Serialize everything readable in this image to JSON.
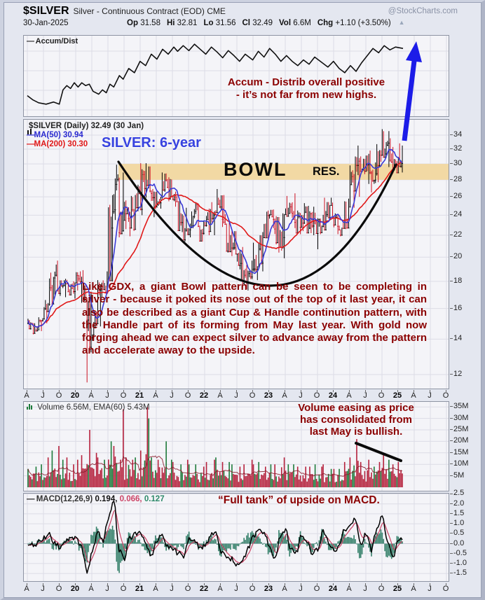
{
  "header": {
    "symbol": "$SILVER",
    "description": "Silver - Continuous Contract (EOD) CME",
    "credit": "@StockCharts.com",
    "date": "30-Jan-2025",
    "ohlc": [
      {
        "label": "Op",
        "value": "31.58"
      },
      {
        "label": "Hi",
        "value": "32.81"
      },
      {
        "label": "Lo",
        "value": "31.56"
      },
      {
        "label": "Cl",
        "value": "32.49"
      },
      {
        "label": "Vol",
        "value": "6.6M"
      },
      {
        "label": "Chg",
        "value": "+1.10 (+3.50%)"
      }
    ],
    "change_arrow": "▲"
  },
  "panels": {
    "accum": {
      "legend_dash": "—",
      "legend": "Accum/Dist",
      "annotation_lines": [
        "Accum - Distrib overall positive",
        "- it’s not far from new highs."
      ]
    },
    "main": {
      "legend_title": "$SILVER (Daily) 32.49 (30 Jan)",
      "legend_ma50": "MA(50) 30.94",
      "legend_ma200": "MA(200) 30.30",
      "period_label": "SILVER: 6-year",
      "bowl_label": "BOWL",
      "res_label": "RES.",
      "paragraph": "Like GDX, a giant Bowl pattern can be seen to be completing in silver - because it poked its nose out of the top of it last year, it can also be described as a giant Cup & Handle continution pattern, with the Handle part of its forming from May last year. With gold now forging ahead we can expect silver to advance away from the pattern and accelerate away to the upside.",
      "y_ticks": [
        34,
        32,
        30,
        28,
        26,
        24,
        22,
        20,
        18,
        16,
        14,
        12
      ]
    },
    "volume": {
      "legend": "Volume 6.56M, EMA(60) 5.43M",
      "annotation_lines": [
        "Volume easing as price",
        "has consolidated from",
        "last May is bullish."
      ],
      "y_ticks": [
        "35M",
        "30M",
        "25M",
        "20M",
        "15M",
        "10M",
        "5M"
      ]
    },
    "macd": {
      "legend_dash": "—",
      "legend_prefix": "MACD(12,26,9)",
      "val_macd": "0.194,",
      "val_signal": "0.066,",
      "val_hist": "0.127",
      "annotation": "“Full tank” of upside on MACD.",
      "y_ticks": [
        "2.5",
        "2.0",
        "1.5",
        "1.0",
        "0.5",
        "0.0",
        "-0.5",
        "-1.0",
        "-1.5"
      ]
    }
  },
  "xaxis_labels": [
    "A",
    "J",
    "O",
    "20",
    "A",
    "J",
    "O",
    "21",
    "A",
    "J",
    "O",
    "22",
    "A",
    "J",
    "O",
    "23",
    "A",
    "J",
    "O",
    "24",
    "A",
    "J",
    "O",
    "25",
    "A",
    "J",
    "O"
  ],
  "colors": {
    "candle_up": "#000000",
    "candle_down": "#cc1122",
    "ma50": "#3a3ad6",
    "ma200": "#e01818",
    "resistance_band": "#f2d9a4",
    "annotation": "#8b0000",
    "arrow_blue": "#1c1ce8",
    "volume_red": "#b5213c",
    "volume_green": "#1d7a3a",
    "macd_line": "#000000",
    "macd_signal": "#cc4466",
    "macd_hist": "#35806a",
    "grid": "#dcdce6"
  },
  "chart_data": [
    {
      "type": "line",
      "title": "Accum/Dist",
      "y_normalized": true,
      "points": [
        [
          0.0,
          0.78
        ],
        [
          0.015,
          0.84
        ],
        [
          0.03,
          0.88
        ],
        [
          0.05,
          0.9
        ],
        [
          0.07,
          0.87
        ],
        [
          0.085,
          0.9
        ],
        [
          0.095,
          0.7
        ],
        [
          0.105,
          0.64
        ],
        [
          0.115,
          0.68
        ],
        [
          0.125,
          0.6
        ],
        [
          0.135,
          0.66
        ],
        [
          0.145,
          0.6
        ],
        [
          0.155,
          0.64
        ],
        [
          0.165,
          0.62
        ],
        [
          0.175,
          0.72
        ],
        [
          0.19,
          0.76
        ],
        [
          0.2,
          0.7
        ],
        [
          0.21,
          0.74
        ],
        [
          0.22,
          0.62
        ],
        [
          0.23,
          0.66
        ],
        [
          0.245,
          0.5
        ],
        [
          0.255,
          0.55
        ],
        [
          0.27,
          0.4
        ],
        [
          0.285,
          0.46
        ],
        [
          0.3,
          0.3
        ],
        [
          0.315,
          0.36
        ],
        [
          0.33,
          0.2
        ],
        [
          0.345,
          0.27
        ],
        [
          0.36,
          0.13
        ],
        [
          0.375,
          0.2
        ],
        [
          0.39,
          0.1
        ],
        [
          0.4,
          0.16
        ],
        [
          0.415,
          0.08
        ],
        [
          0.43,
          0.15
        ],
        [
          0.445,
          0.06
        ],
        [
          0.46,
          0.13
        ],
        [
          0.475,
          0.2
        ],
        [
          0.49,
          0.1
        ],
        [
          0.505,
          0.17
        ],
        [
          0.52,
          0.25
        ],
        [
          0.535,
          0.15
        ],
        [
          0.55,
          0.22
        ],
        [
          0.565,
          0.3
        ],
        [
          0.58,
          0.2
        ],
        [
          0.6,
          0.28
        ],
        [
          0.615,
          0.16
        ],
        [
          0.63,
          0.24
        ],
        [
          0.645,
          0.12
        ],
        [
          0.66,
          0.2
        ],
        [
          0.675,
          0.3
        ],
        [
          0.69,
          0.22
        ],
        [
          0.705,
          0.3
        ],
        [
          0.72,
          0.36
        ],
        [
          0.735,
          0.28
        ],
        [
          0.75,
          0.34
        ],
        [
          0.765,
          0.24
        ],
        [
          0.78,
          0.3
        ],
        [
          0.8,
          0.38
        ],
        [
          0.815,
          0.3
        ],
        [
          0.83,
          0.4
        ],
        [
          0.845,
          0.46
        ],
        [
          0.86,
          0.36
        ],
        [
          0.875,
          0.44
        ],
        [
          0.89,
          0.32
        ],
        [
          0.905,
          0.22
        ],
        [
          0.92,
          0.12
        ],
        [
          0.935,
          0.18
        ],
        [
          0.95,
          0.08
        ],
        [
          0.965,
          0.14
        ],
        [
          0.98,
          0.1
        ],
        [
          1.0,
          0.12
        ]
      ]
    },
    {
      "type": "candlestick",
      "title": "$SILVER Daily",
      "x_start": "Apr 2019",
      "x_end": "Jan 2025",
      "scale": "log",
      "ylim": [
        11,
        35
      ],
      "last_close": 32.49,
      "ma50_last": 30.94,
      "ma200_last": 30.3,
      "resistance_zone": [
        28,
        30
      ],
      "bowl": {
        "start_month": "2020-09",
        "start_price": 30,
        "bottom_month": "2022-12",
        "bottom_price": 17.7,
        "end_month": "2024-12",
        "end_price": 29.9
      },
      "monthly_hlc": [
        [
          15.3,
          14.6,
          15.0
        ],
        [
          15.0,
          14.3,
          14.6
        ],
        [
          15.4,
          14.5,
          15.3
        ],
        [
          16.6,
          15.0,
          16.3
        ],
        [
          18.7,
          16.2,
          18.3
        ],
        [
          19.7,
          17.0,
          17.1
        ],
        [
          18.1,
          16.9,
          18.0
        ],
        [
          18.2,
          16.8,
          17.0
        ],
        [
          18.0,
          16.7,
          17.9
        ],
        [
          18.8,
          17.3,
          18.0
        ],
        [
          18.9,
          16.4,
          16.7
        ],
        [
          17.2,
          11.6,
          14.1
        ],
        [
          15.8,
          13.9,
          15.0
        ],
        [
          18.1,
          14.8,
          17.9
        ],
        [
          18.8,
          17.2,
          18.2
        ],
        [
          26.2,
          18.0,
          24.4
        ],
        [
          29.9,
          23.5,
          28.2
        ],
        [
          28.9,
          21.8,
          23.5
        ],
        [
          25.6,
          22.6,
          23.7
        ],
        [
          26.1,
          21.9,
          22.6
        ],
        [
          27.4,
          22.6,
          26.4
        ],
        [
          30.1,
          24.0,
          27.0
        ],
        [
          30.1,
          25.9,
          26.7
        ],
        [
          26.9,
          23.8,
          24.9
        ],
        [
          26.6,
          24.7,
          26.0
        ],
        [
          28.9,
          25.8,
          28.0
        ],
        [
          28.3,
          25.5,
          26.1
        ],
        [
          26.6,
          24.9,
          25.5
        ],
        [
          25.6,
          22.3,
          23.9
        ],
        [
          24.8,
          21.4,
          22.1
        ],
        [
          24.4,
          21.8,
          23.9
        ],
        [
          25.4,
          22.8,
          22.9
        ],
        [
          23.4,
          21.4,
          23.3
        ],
        [
          24.7,
          22.0,
          22.4
        ],
        [
          25.4,
          22.0,
          24.4
        ],
        [
          26.9,
          24.2,
          24.9
        ],
        [
          26.2,
          22.8,
          23.1
        ],
        [
          23.3,
          20.4,
          21.5
        ],
        [
          22.5,
          20.1,
          20.3
        ],
        [
          20.6,
          18.0,
          20.2
        ],
        [
          20.9,
          17.4,
          17.9
        ],
        [
          19.7,
          17.3,
          19.0
        ],
        [
          21.3,
          18.1,
          19.2
        ],
        [
          22.3,
          18.8,
          21.8
        ],
        [
          24.5,
          21.7,
          24.0
        ],
        [
          24.6,
          22.7,
          23.6
        ],
        [
          23.9,
          20.4,
          20.9
        ],
        [
          24.2,
          19.9,
          24.1
        ],
        [
          26.1,
          23.9,
          25.1
        ],
        [
          26.4,
          22.7,
          23.3
        ],
        [
          24.5,
          22.1,
          22.8
        ],
        [
          25.3,
          22.4,
          24.9
        ],
        [
          25.0,
          22.2,
          24.2
        ],
        [
          24.9,
          22.0,
          22.2
        ],
        [
          23.7,
          20.7,
          22.9
        ],
        [
          25.9,
          22.5,
          25.3
        ],
        [
          25.9,
          23.6,
          23.8
        ],
        [
          24.2,
          22.1,
          22.9
        ],
        [
          23.4,
          21.9,
          22.7
        ],
        [
          25.8,
          22.6,
          24.9
        ],
        [
          29.8,
          24.8,
          26.7
        ],
        [
          32.5,
          26.0,
          30.4
        ],
        [
          31.0,
          28.7,
          29.1
        ],
        [
          31.8,
          27.5,
          28.9
        ],
        [
          30.2,
          26.5,
          28.8
        ],
        [
          32.7,
          27.7,
          31.2
        ],
        [
          34.9,
          30.8,
          32.6
        ],
        [
          34.6,
          29.6,
          30.3
        ],
        [
          32.3,
          28.8,
          28.9
        ],
        [
          32.8,
          28.9,
          32.49
        ]
      ]
    },
    {
      "type": "bar",
      "title": "Volume",
      "ema60_label": "5.43M",
      "ylim": [
        0,
        35
      ],
      "unit": "M shares",
      "monthly_avg_peak": [
        [
          4,
          8
        ],
        [
          4,
          9
        ],
        [
          4.5,
          10
        ],
        [
          5,
          13
        ],
        [
          6,
          16
        ],
        [
          6,
          18
        ],
        [
          5,
          12
        ],
        [
          5,
          13
        ],
        [
          4.5,
          10
        ],
        [
          5,
          12
        ],
        [
          6,
          14
        ],
        [
          9,
          25
        ],
        [
          7,
          15
        ],
        [
          6,
          13
        ],
        [
          6,
          12
        ],
        [
          9,
          20
        ],
        [
          10,
          18
        ],
        [
          10,
          34
        ],
        [
          6.5,
          13
        ],
        [
          6,
          12
        ],
        [
          6,
          13
        ],
        [
          8,
          16
        ],
        [
          10,
          35,
          30
        ],
        [
          6.5,
          13
        ],
        [
          6,
          12
        ],
        [
          6.5,
          20
        ],
        [
          5.5,
          12
        ],
        [
          5,
          11
        ],
        [
          4.5,
          10
        ],
        [
          5,
          12
        ],
        [
          4.5,
          10
        ],
        [
          4.5,
          10
        ],
        [
          4.5,
          9
        ],
        [
          5,
          11
        ],
        [
          5,
          12
        ],
        [
          6,
          13
        ],
        [
          5,
          11
        ],
        [
          5,
          11
        ],
        [
          4.5,
          10
        ],
        [
          4,
          9
        ],
        [
          4.5,
          10
        ],
        [
          5,
          12
        ],
        [
          4.5,
          10
        ],
        [
          5,
          11
        ],
        [
          4.5,
          9
        ],
        [
          5,
          10
        ],
        [
          4.5,
          10
        ],
        [
          6,
          13
        ],
        [
          5,
          10
        ],
        [
          4.5,
          10
        ],
        [
          4,
          9
        ],
        [
          4.5,
          9
        ],
        [
          4,
          9
        ],
        [
          5,
          10
        ],
        [
          4.5,
          9
        ],
        [
          4.5,
          10
        ],
        [
          4,
          8
        ],
        [
          4,
          8
        ],
        [
          4,
          8
        ],
        [
          5.5,
          11
        ],
        [
          6.5,
          13
        ],
        [
          8,
          21
        ],
        [
          5.5,
          11
        ],
        [
          5,
          12
        ],
        [
          4.5,
          9
        ],
        [
          5.5,
          11
        ],
        [
          6.5,
          15
        ],
        [
          5.5,
          12
        ],
        [
          5,
          10
        ],
        [
          6,
          11
        ]
      ]
    },
    {
      "type": "line",
      "title": "MACD(12,26,9)",
      "ylim": [
        -1.5,
        2.5
      ],
      "last_values": [
        0.194,
        0.066,
        0.127
      ],
      "monthly": [
        0.0,
        -0.1,
        0.1,
        0.3,
        0.45,
        0.0,
        -0.15,
        0.1,
        0.2,
        0.25,
        -0.2,
        -1.5,
        -0.3,
        0.5,
        0.15,
        1.3,
        2.1,
        -0.3,
        -0.75,
        0.3,
        0.55,
        0.5,
        -0.1,
        -0.55,
        0.2,
        0.5,
        -0.15,
        -0.3,
        -0.45,
        -0.6,
        0.3,
        0.1,
        -0.2,
        -0.15,
        0.45,
        0.5,
        -0.4,
        -0.7,
        -0.75,
        -1.05,
        -0.8,
        -0.25,
        0.4,
        0.75,
        0.5,
        -0.1,
        -0.75,
        0.3,
        0.65,
        -0.3,
        -0.45,
        0.5,
        0.0,
        -0.55,
        -0.3,
        0.65,
        0.1,
        -0.35,
        -0.1,
        0.7,
        1.0,
        1.25,
        -0.1,
        0.55,
        -0.35,
        0.8,
        1.3,
        0.15,
        -0.65,
        0.194
      ]
    }
  ]
}
